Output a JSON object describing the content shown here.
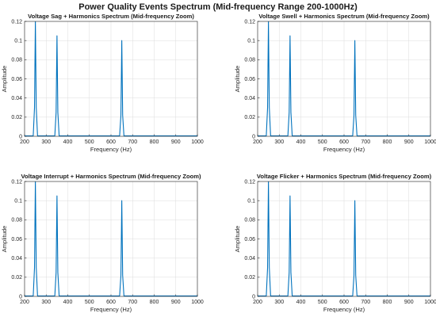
{
  "figure_title": "Power Quality Events Spectrum (Mid-frequency Range 200-1000Hz)",
  "colors": {
    "line": "#0072BD",
    "grid": "#dcdcdc",
    "axis": "#262626"
  },
  "chart_data": [
    {
      "type": "line",
      "title": "Voltage Sag + Harmonics Spectrum (Mid-frequency Zoom)",
      "xlabel": "Frequency (Hz)",
      "ylabel": "Amplitude",
      "xlim": [
        200,
        1000
      ],
      "ylim": [
        0,
        0.12
      ],
      "xticks": [
        "200",
        "300",
        "400",
        "500",
        "600",
        "700",
        "800",
        "900",
        "1000"
      ],
      "yticks": [
        "0",
        "0.02",
        "0.04",
        "0.06",
        "0.08",
        "0.1",
        "0.12"
      ],
      "grid": true,
      "x": [
        200,
        240,
        246,
        250,
        254,
        260,
        340,
        346,
        350,
        354,
        360,
        640,
        646,
        650,
        654,
        660,
        1000
      ],
      "y": [
        0.0005,
        0.0005,
        0.03,
        0.125,
        0.03,
        0.0005,
        0.0005,
        0.025,
        0.105,
        0.025,
        0.0005,
        0.0005,
        0.022,
        0.1,
        0.022,
        0.0005,
        0.0005
      ]
    },
    {
      "type": "line",
      "title": "Voltage Swell + Harmonics Spectrum (Mid-frequency Zoom)",
      "xlabel": "Frequency (Hz)",
      "ylabel": "Amplitude",
      "xlim": [
        200,
        1000
      ],
      "ylim": [
        0,
        0.12
      ],
      "xticks": [
        "200",
        "300",
        "400",
        "500",
        "600",
        "700",
        "800",
        "900",
        "1000"
      ],
      "yticks": [
        "0",
        "0.02",
        "0.04",
        "0.06",
        "0.08",
        "0.1",
        "0.12"
      ],
      "grid": true,
      "x": [
        200,
        240,
        246,
        250,
        254,
        260,
        340,
        346,
        350,
        354,
        360,
        640,
        646,
        650,
        654,
        660,
        1000
      ],
      "y": [
        0.0005,
        0.0005,
        0.03,
        0.125,
        0.03,
        0.0005,
        0.0005,
        0.025,
        0.105,
        0.025,
        0.0005,
        0.0005,
        0.022,
        0.1,
        0.022,
        0.0005,
        0.0005
      ]
    },
    {
      "type": "line",
      "title": "Voltage Interrupt + Harmonics Spectrum (Mid-frequency Zoom)",
      "xlabel": "Frequency (Hz)",
      "ylabel": "Amplitude",
      "xlim": [
        200,
        1000
      ],
      "ylim": [
        0,
        0.12
      ],
      "xticks": [
        "200",
        "300",
        "400",
        "500",
        "600",
        "700",
        "800",
        "900",
        "1000"
      ],
      "yticks": [
        "0",
        "0.02",
        "0.04",
        "0.06",
        "0.08",
        "0.1",
        "0.12"
      ],
      "grid": true,
      "x": [
        200,
        240,
        246,
        250,
        254,
        260,
        340,
        346,
        350,
        354,
        360,
        640,
        646,
        650,
        654,
        660,
        1000
      ],
      "y": [
        0.0005,
        0.0005,
        0.03,
        0.125,
        0.03,
        0.0005,
        0.0005,
        0.025,
        0.105,
        0.025,
        0.0005,
        0.0005,
        0.022,
        0.1,
        0.022,
        0.0005,
        0.0005
      ]
    },
    {
      "type": "line",
      "title": "Voltage Flicker + Harmonics Spectrum (Mid-frequency Zoom)",
      "xlabel": "Frequency (Hz)",
      "ylabel": "Amplitude",
      "xlim": [
        200,
        1000
      ],
      "ylim": [
        0,
        0.12
      ],
      "xticks": [
        "200",
        "300",
        "400",
        "500",
        "600",
        "700",
        "800",
        "900",
        "1000"
      ],
      "yticks": [
        "0",
        "0.02",
        "0.04",
        "0.06",
        "0.08",
        "0.1",
        "0.12"
      ],
      "grid": true,
      "x": [
        200,
        240,
        246,
        250,
        254,
        260,
        340,
        346,
        350,
        354,
        360,
        640,
        646,
        650,
        654,
        660,
        1000
      ],
      "y": [
        0.0005,
        0.0005,
        0.03,
        0.125,
        0.03,
        0.0005,
        0.0005,
        0.025,
        0.105,
        0.025,
        0.0005,
        0.0005,
        0.022,
        0.1,
        0.022,
        0.0005,
        0.0005
      ]
    }
  ]
}
